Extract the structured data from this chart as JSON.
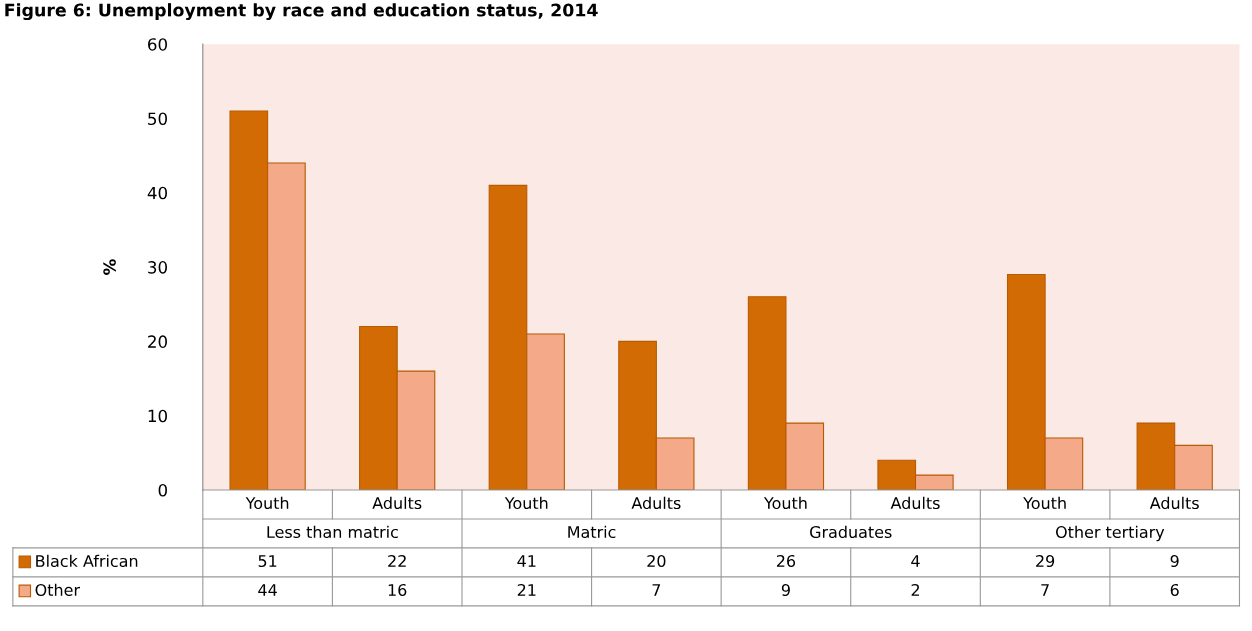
{
  "chart_data": {
    "type": "bar",
    "title": "Figure 6: Unemployment by race and education status, 2014",
    "ylabel": "%",
    "categories": [
      "Youth",
      "Adults",
      "Youth",
      "Adults",
      "Youth",
      "Adults",
      "Youth",
      "Adults"
    ],
    "annotations": [
      "Less than matric",
      "Matric",
      "Graduates",
      "Other tertiary"
    ],
    "series": [
      {
        "name": "Black African",
        "color": "#d36b04",
        "values": [
          51,
          22,
          41,
          20,
          26,
          4,
          29,
          9
        ]
      },
      {
        "name": "Other",
        "color": "#f4aa88",
        "values": [
          44,
          16,
          21,
          7,
          9,
          2,
          7,
          6
        ]
      }
    ],
    "ylim": [
      0,
      60
    ],
    "yticks": [
      0,
      10,
      20,
      30,
      40,
      50,
      60
    ],
    "grid": false,
    "legend": "bottom left",
    "data_labels": true
  }
}
